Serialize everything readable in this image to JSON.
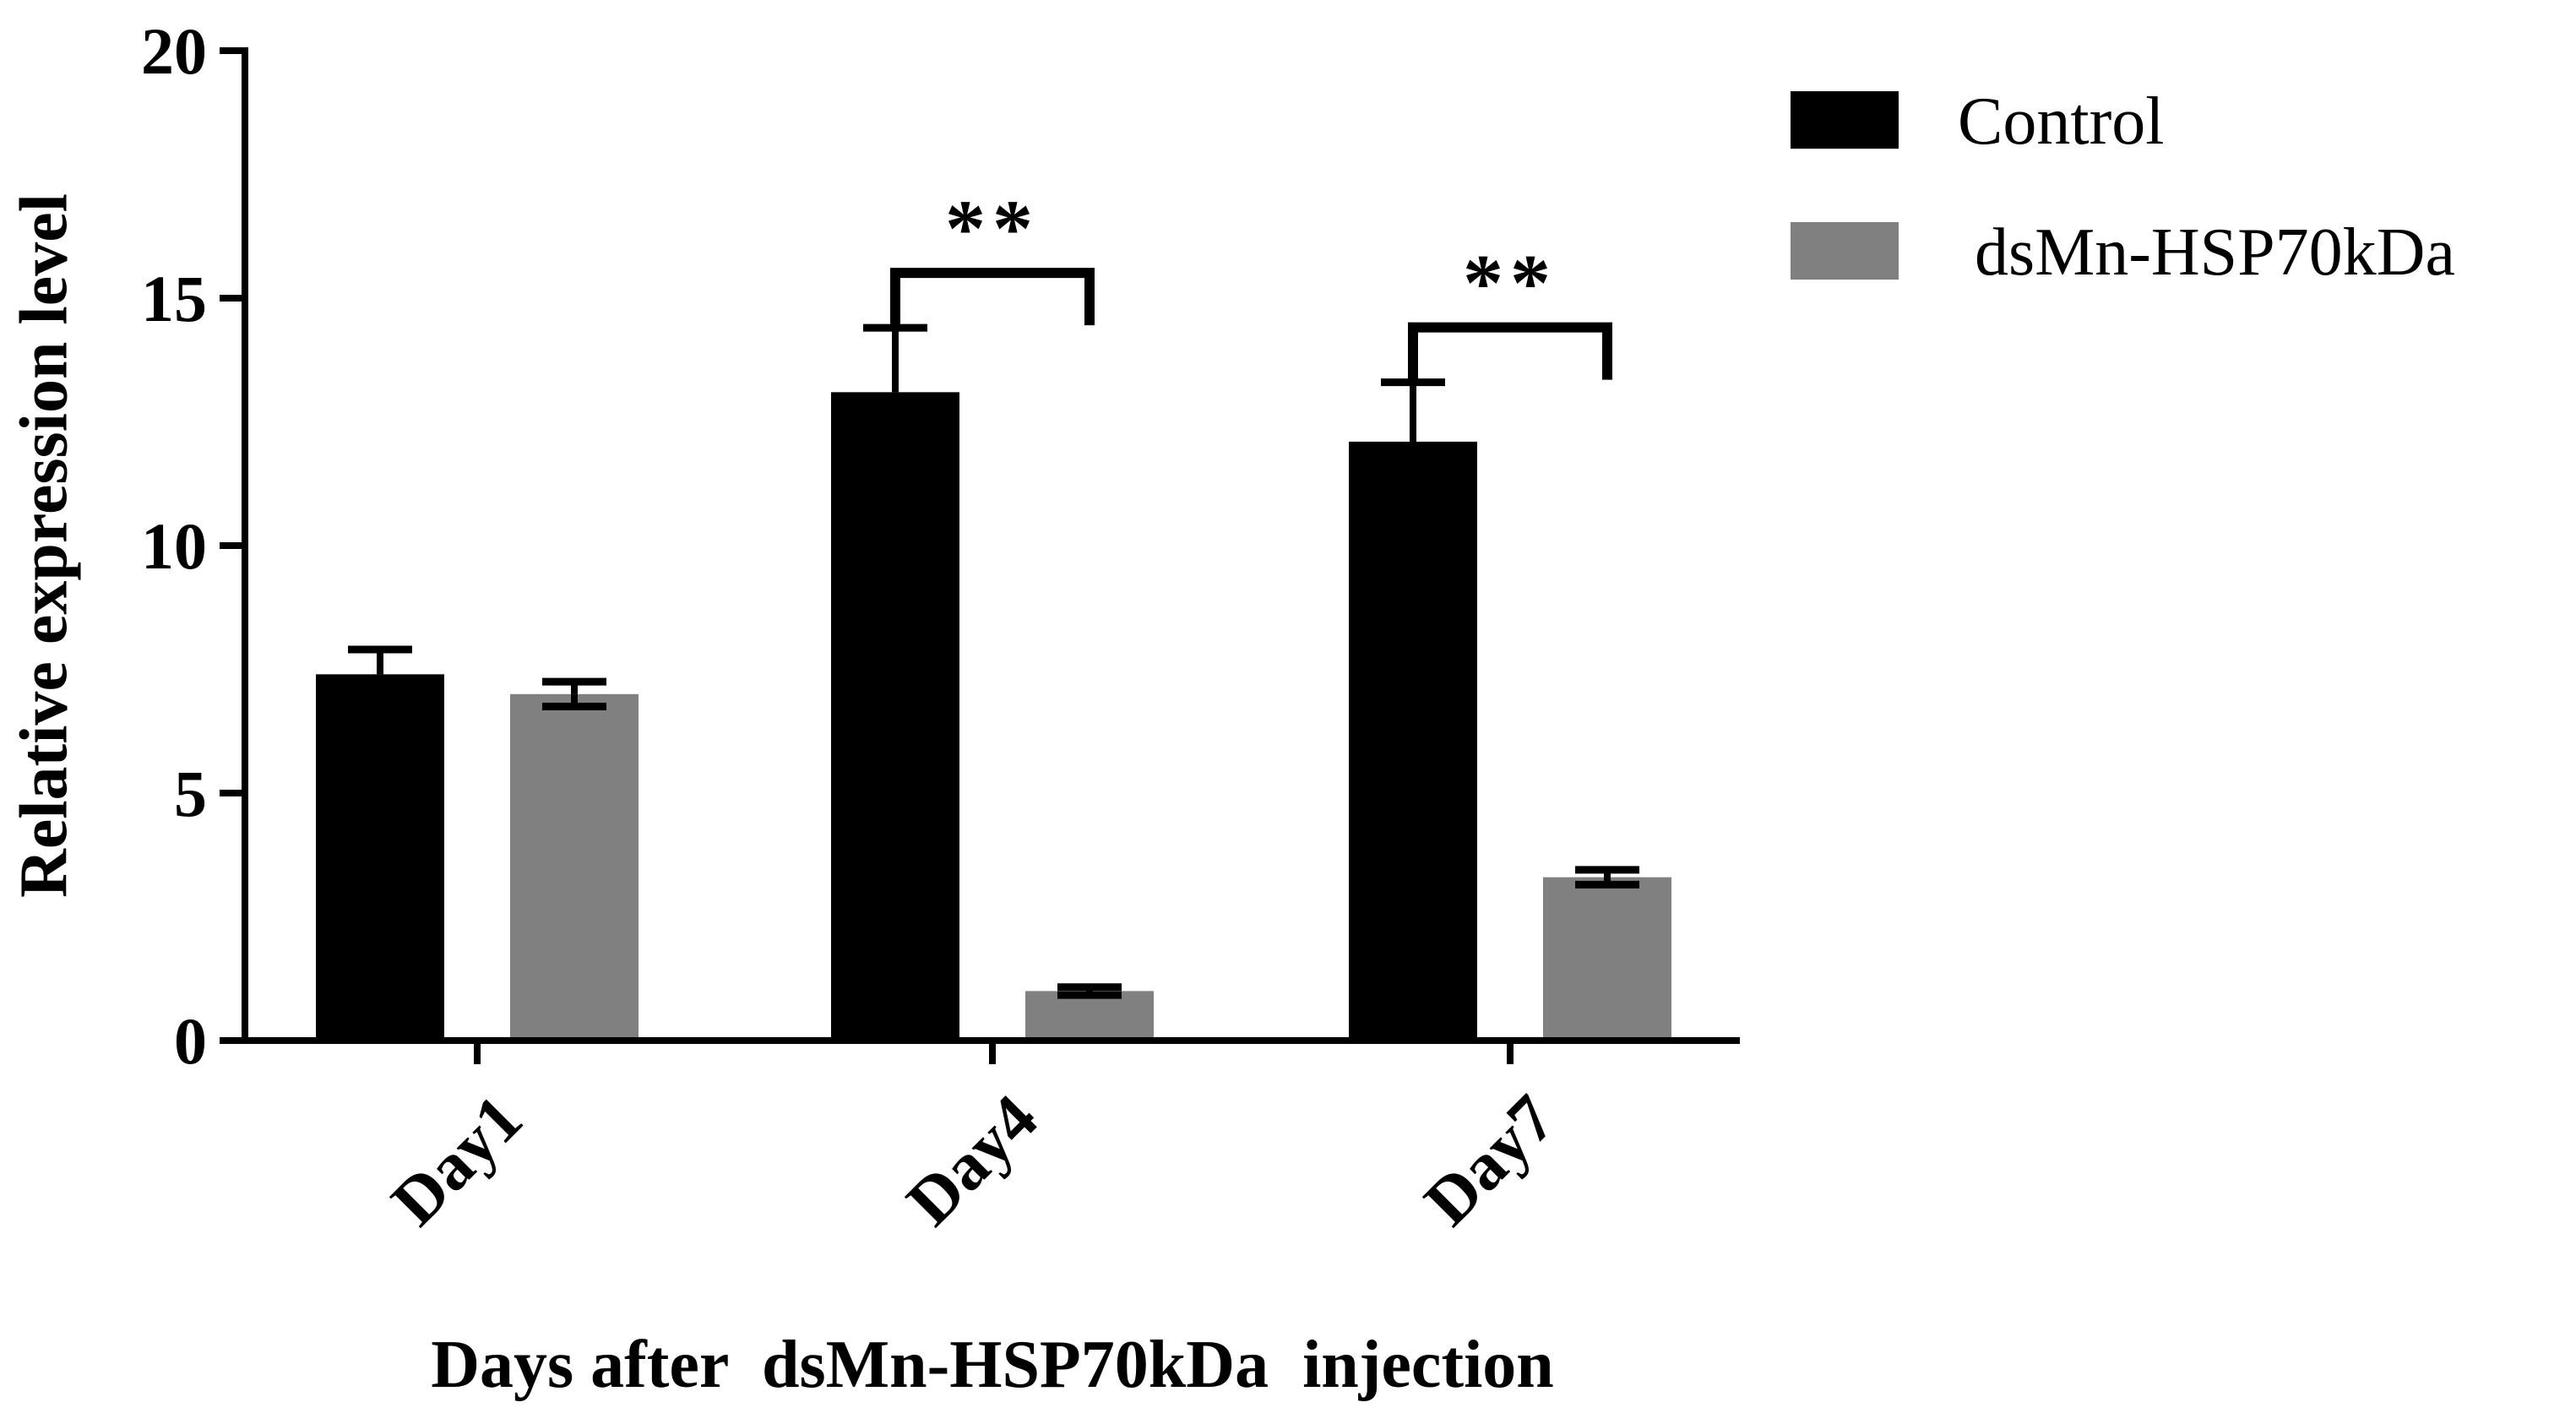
{
  "chart_data": {
    "type": "bar",
    "title": "",
    "xlabel": "Days after  dsMn-HSP70kDa  injection",
    "ylabel": "Relative expression level",
    "categories": [
      "Day1",
      "Day4",
      "Day7"
    ],
    "ylim": [
      0,
      20
    ],
    "yticks": [
      0,
      5,
      10,
      15,
      20
    ],
    "grid": false,
    "legend_position": "top-right",
    "series": [
      {
        "name": "Control",
        "color": "#000000",
        "values": [
          7.4,
          13.1,
          12.1
        ],
        "errors": [
          0.5,
          1.3,
          1.2
        ]
      },
      {
        "name": " dsMn-HSP70kDa",
        "color": "#808080",
        "values": [
          7.0,
          1.0,
          3.3
        ],
        "errors": [
          0.25,
          0.08,
          0.15
        ]
      }
    ],
    "annotations": [
      {
        "category": "Day4",
        "text": "**"
      },
      {
        "category": "Day7",
        "text": "**"
      }
    ]
  }
}
